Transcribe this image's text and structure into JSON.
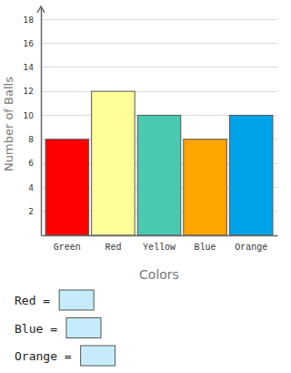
{
  "chart_data": {
    "type": "bar",
    "x_label": "Colors",
    "y_label": "Number of Balls",
    "categories": [
      "Green",
      "Red",
      "Yellow",
      "Blue",
      "Orange"
    ],
    "values": [
      8,
      12,
      10,
      8,
      10
    ],
    "colors": [
      "#ff0000",
      "#ffff99",
      "#48c9b0",
      "#ffa500",
      "#00a2e8"
    ],
    "ylim": [
      0,
      19
    ],
    "yticks": [
      2,
      4,
      6,
      8,
      10,
      12,
      14,
      16,
      18
    ],
    "grid": true,
    "annotations": [
      "Red =",
      "Blue =",
      "Orange ="
    ]
  }
}
